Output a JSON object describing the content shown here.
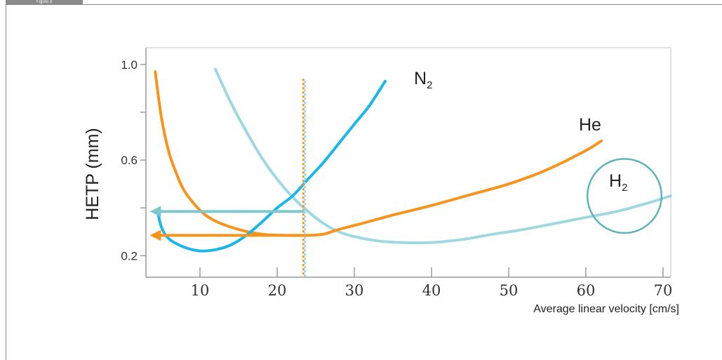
{
  "figure": {
    "tab_label": "Figure 3"
  },
  "chart_data": {
    "type": "line",
    "title": "",
    "xlabel": "Average linear velocity [cm/s]",
    "ylabel": "HETP (mm)",
    "xlim": [
      3,
      71
    ],
    "ylim": [
      0.11,
      1.07
    ],
    "x_ticks": [
      10,
      20,
      30,
      40,
      50,
      60,
      70
    ],
    "x_tick_labels": [
      "10",
      "20",
      "30",
      "40",
      "50",
      "60",
      "70"
    ],
    "y_ticks": [
      0.2,
      0.4,
      0.6,
      0.8,
      1.0
    ],
    "y_tick_labels": [
      "0.2",
      "",
      "0.6",
      "",
      "1.0"
    ],
    "grid": false,
    "series": [
      {
        "name": "N2",
        "label_main": "N",
        "label_sub": "2",
        "color": "#1ab8ea",
        "points": [
          [
            4.5,
            0.39
          ],
          [
            5,
            0.32
          ],
          [
            6,
            0.27
          ],
          [
            8,
            0.235
          ],
          [
            10,
            0.22
          ],
          [
            12,
            0.225
          ],
          [
            14,
            0.245
          ],
          [
            16,
            0.285
          ],
          [
            18,
            0.34
          ],
          [
            20,
            0.4
          ],
          [
            22,
            0.45
          ],
          [
            24,
            0.52
          ],
          [
            26,
            0.59
          ],
          [
            28,
            0.67
          ],
          [
            30,
            0.75
          ],
          [
            32,
            0.83
          ],
          [
            34,
            0.93
          ]
        ]
      },
      {
        "name": "He",
        "label_main": "He",
        "label_sub": "",
        "color": "#f7941d",
        "points": [
          [
            4.2,
            0.97
          ],
          [
            5,
            0.78
          ],
          [
            6,
            0.63
          ],
          [
            7,
            0.54
          ],
          [
            8,
            0.47
          ],
          [
            10,
            0.39
          ],
          [
            12,
            0.345
          ],
          [
            15,
            0.31
          ],
          [
            18,
            0.29
          ],
          [
            21,
            0.285
          ],
          [
            24,
            0.285
          ],
          [
            26,
            0.29
          ],
          [
            28,
            0.31
          ],
          [
            31,
            0.335
          ],
          [
            35,
            0.37
          ],
          [
            40,
            0.41
          ],
          [
            45,
            0.455
          ],
          [
            50,
            0.5
          ],
          [
            55,
            0.56
          ],
          [
            60,
            0.64
          ],
          [
            62,
            0.68
          ]
        ]
      },
      {
        "name": "H2",
        "label_main": "H",
        "label_sub": "2",
        "color": "#9fd8e0",
        "points": [
          [
            12,
            0.98
          ],
          [
            14,
            0.84
          ],
          [
            16,
            0.72
          ],
          [
            18,
            0.61
          ],
          [
            20,
            0.52
          ],
          [
            22,
            0.445
          ],
          [
            24,
            0.385
          ],
          [
            26,
            0.335
          ],
          [
            28,
            0.3
          ],
          [
            30,
            0.28
          ],
          [
            33,
            0.262
          ],
          [
            36,
            0.255
          ],
          [
            40,
            0.255
          ],
          [
            44,
            0.268
          ],
          [
            48,
            0.29
          ],
          [
            52,
            0.31
          ],
          [
            56,
            0.335
          ],
          [
            60,
            0.36
          ],
          [
            64,
            0.385
          ],
          [
            68,
            0.42
          ],
          [
            71,
            0.45
          ]
        ]
      }
    ],
    "annotations": {
      "vertical_dotted_line": {
        "x": 23.5,
        "y_range": [
          0.11,
          0.94
        ],
        "colors": [
          "#f7941d",
          "#9fd8e0"
        ]
      },
      "arrows": [
        {
          "from": [
            23.5,
            0.385
          ],
          "to": [
            3.5,
            0.385
          ],
          "color": "#7fc6cf"
        },
        {
          "from": [
            23.5,
            0.285
          ],
          "to": [
            3.5,
            0.285
          ],
          "color": "#f7941d"
        }
      ],
      "circle": {
        "center": [
          65,
          0.45
        ],
        "radius_x": 4.8,
        "color": "#5fb3bd",
        "around": "H2"
      }
    }
  }
}
